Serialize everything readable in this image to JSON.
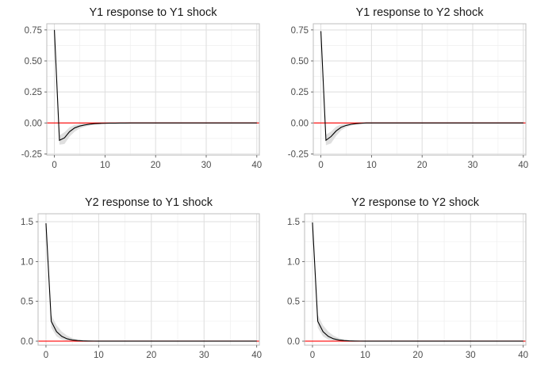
{
  "chart_data": [
    {
      "type": "line",
      "title": "Y1 response to Y1 shock",
      "xlim": [
        -1.5,
        40.5
      ],
      "ylim": [
        -0.26,
        0.8
      ],
      "xticks": [
        0,
        10,
        20,
        30,
        40
      ],
      "xtick_labels": [
        "0",
        "10",
        "20",
        "30",
        "40"
      ],
      "yticks": [
        -0.25,
        0,
        0.25,
        0.5,
        0.75
      ],
      "ytick_labels": [
        "-0.25",
        "0.00",
        "0.25",
        "0.50",
        "0.75"
      ],
      "reference_line": {
        "y": 0,
        "color": "#ff0000"
      },
      "grid": true,
      "x": [
        0,
        1,
        2,
        3,
        4,
        5,
        6,
        7,
        8,
        9,
        10,
        11,
        12,
        13,
        14,
        15,
        16,
        17,
        18,
        19,
        20,
        21,
        22,
        23,
        24,
        25,
        26,
        27,
        28,
        29,
        30,
        31,
        32,
        33,
        34,
        35,
        36,
        37,
        38,
        39,
        40
      ],
      "series": [
        {
          "role": "estimate",
          "color": "#000000",
          "values": [
            0.75,
            -0.14,
            -0.12,
            -0.07,
            -0.04,
            -0.025,
            -0.016,
            -0.01,
            -0.006,
            -0.004,
            -0.003,
            -0.002,
            -0.0015,
            -0.001,
            -0.0008,
            0,
            0,
            0,
            0,
            0,
            0,
            0,
            0,
            0,
            0,
            0,
            0,
            0,
            0,
            0,
            0,
            0,
            0,
            0,
            0,
            0,
            0,
            0,
            0,
            0,
            0
          ]
        },
        {
          "role": "lower",
          "color": "#d9d9d9",
          "values": [
            0.75,
            -0.175,
            -0.17,
            -0.11,
            -0.07,
            -0.045,
            -0.03,
            -0.02,
            -0.013,
            -0.009,
            -0.006,
            -0.004,
            -0.003,
            -0.002,
            -0.001,
            0,
            0,
            0,
            0,
            0,
            0,
            0,
            0,
            0,
            0,
            0,
            0,
            0,
            0,
            0,
            0,
            0,
            0,
            0,
            0,
            0,
            0,
            0,
            0,
            0,
            0
          ]
        },
        {
          "role": "upper",
          "color": "#d9d9d9",
          "values": [
            0.75,
            -0.1,
            -0.075,
            -0.035,
            -0.015,
            -0.008,
            -0.004,
            -0.002,
            -0.001,
            -0.0005,
            0,
            0,
            0,
            0,
            0,
            0,
            0,
            0,
            0,
            0,
            0,
            0,
            0,
            0,
            0,
            0,
            0,
            0,
            0,
            0,
            0,
            0,
            0,
            0,
            0,
            0,
            0,
            0,
            0,
            0,
            0
          ]
        }
      ]
    },
    {
      "type": "line",
      "title": "Y1 response to Y2 shock",
      "xlim": [
        -1.5,
        40.5
      ],
      "ylim": [
        -0.26,
        0.8
      ],
      "xticks": [
        0,
        10,
        20,
        30,
        40
      ],
      "xtick_labels": [
        "0",
        "10",
        "20",
        "30",
        "40"
      ],
      "yticks": [
        -0.25,
        0,
        0.25,
        0.5,
        0.75
      ],
      "ytick_labels": [
        "-0.25",
        "0.00",
        "0.25",
        "0.50",
        "0.75"
      ],
      "reference_line": {
        "y": 0,
        "color": "#ff0000"
      },
      "grid": true,
      "x": [
        0,
        1,
        2,
        3,
        4,
        5,
        6,
        7,
        8,
        9,
        10,
        11,
        12,
        13,
        14,
        15,
        16,
        17,
        18,
        19,
        20,
        21,
        22,
        23,
        24,
        25,
        26,
        27,
        28,
        29,
        30,
        31,
        32,
        33,
        34,
        35,
        36,
        37,
        38,
        39,
        40
      ],
      "series": [
        {
          "role": "estimate",
          "color": "#000000",
          "values": [
            0.74,
            -0.14,
            -0.11,
            -0.065,
            -0.035,
            -0.02,
            -0.011,
            -0.006,
            -0.003,
            0,
            0,
            0,
            0,
            0,
            0,
            0,
            0,
            0,
            0,
            0,
            0,
            0,
            0,
            0,
            0,
            0,
            0,
            0,
            0,
            0,
            0,
            0,
            0,
            0,
            0,
            0,
            0,
            0,
            0,
            0,
            0
          ]
        },
        {
          "role": "lower",
          "color": "#d9d9d9",
          "values": [
            0.74,
            -0.18,
            -0.165,
            -0.105,
            -0.06,
            -0.035,
            -0.02,
            -0.011,
            -0.006,
            -0.002,
            0,
            0,
            0,
            0,
            0,
            0,
            0,
            0,
            0,
            0,
            0,
            0,
            0,
            0,
            0,
            0,
            0,
            0,
            0,
            0,
            0,
            0,
            0,
            0,
            0,
            0,
            0,
            0,
            0,
            0,
            0
          ]
        },
        {
          "role": "upper",
          "color": "#d9d9d9",
          "values": [
            0.74,
            -0.095,
            -0.07,
            -0.03,
            -0.012,
            -0.005,
            -0.002,
            -0.001,
            0,
            0,
            0,
            0,
            0,
            0,
            0,
            0,
            0,
            0,
            0,
            0,
            0,
            0,
            0,
            0,
            0,
            0,
            0,
            0,
            0,
            0,
            0,
            0,
            0,
            0,
            0,
            0,
            0,
            0,
            0,
            0,
            0
          ]
        }
      ]
    },
    {
      "type": "line",
      "title": "Y2 response to Y1 shock",
      "xlim": [
        -1.5,
        40.5
      ],
      "ylim": [
        -0.05,
        1.6
      ],
      "xticks": [
        0,
        10,
        20,
        30,
        40
      ],
      "xtick_labels": [
        "0",
        "10",
        "20",
        "30",
        "40"
      ],
      "yticks": [
        0,
        0.5,
        1,
        1.5
      ],
      "ytick_labels": [
        "0.0",
        "0.5",
        "1.0",
        "1.5"
      ],
      "reference_line": {
        "y": 0,
        "color": "#ff0000"
      },
      "grid": true,
      "x": [
        0,
        1,
        2,
        3,
        4,
        5,
        6,
        7,
        8,
        9,
        10,
        11,
        12,
        13,
        14,
        15,
        16,
        17,
        18,
        19,
        20,
        21,
        22,
        23,
        24,
        25,
        26,
        27,
        28,
        29,
        30,
        31,
        32,
        33,
        34,
        35,
        36,
        37,
        38,
        39,
        40
      ],
      "series": [
        {
          "role": "estimate",
          "color": "#000000",
          "values": [
            1.48,
            0.25,
            0.12,
            0.06,
            0.03,
            0.015,
            0.008,
            0.004,
            0.002,
            0.001,
            0,
            0,
            0,
            0,
            0,
            0,
            0,
            0,
            0,
            0,
            0,
            0,
            0,
            0,
            0,
            0,
            0,
            0,
            0,
            0,
            0,
            0,
            0,
            0,
            0,
            0,
            0,
            0,
            0,
            0,
            0
          ]
        },
        {
          "role": "lower",
          "color": "#d9d9d9",
          "values": [
            1.48,
            0.17,
            0.06,
            0.02,
            0.007,
            0.002,
            0,
            0,
            0,
            0,
            0,
            0,
            0,
            0,
            0,
            0,
            0,
            0,
            0,
            0,
            0,
            0,
            0,
            0,
            0,
            0,
            0,
            0,
            0,
            0,
            0,
            0,
            0,
            0,
            0,
            0,
            0,
            0,
            0,
            0,
            0
          ]
        },
        {
          "role": "upper",
          "color": "#d9d9d9",
          "values": [
            1.48,
            0.33,
            0.2,
            0.12,
            0.07,
            0.04,
            0.022,
            0.012,
            0.006,
            0.003,
            0.001,
            0,
            0,
            0,
            0,
            0,
            0,
            0,
            0,
            0,
            0,
            0,
            0,
            0,
            0,
            0,
            0,
            0,
            0,
            0,
            0,
            0,
            0,
            0,
            0,
            0,
            0,
            0,
            0,
            0,
            0
          ]
        }
      ]
    },
    {
      "type": "line",
      "title": "Y2 response to Y2 shock",
      "xlim": [
        -1.5,
        40.5
      ],
      "ylim": [
        -0.05,
        1.6
      ],
      "xticks": [
        0,
        10,
        20,
        30,
        40
      ],
      "xtick_labels": [
        "0",
        "10",
        "20",
        "30",
        "40"
      ],
      "yticks": [
        0,
        0.5,
        1,
        1.5
      ],
      "ytick_labels": [
        "0.0",
        "0.5",
        "1.0",
        "1.5"
      ],
      "reference_line": {
        "y": 0,
        "color": "#ff0000"
      },
      "grid": true,
      "x": [
        0,
        1,
        2,
        3,
        4,
        5,
        6,
        7,
        8,
        9,
        10,
        11,
        12,
        13,
        14,
        15,
        16,
        17,
        18,
        19,
        20,
        21,
        22,
        23,
        24,
        25,
        26,
        27,
        28,
        29,
        30,
        31,
        32,
        33,
        34,
        35,
        36,
        37,
        38,
        39,
        40
      ],
      "series": [
        {
          "role": "estimate",
          "color": "#000000",
          "values": [
            1.49,
            0.25,
            0.12,
            0.06,
            0.03,
            0.015,
            0.008,
            0.004,
            0.002,
            0.001,
            0,
            0,
            0,
            0,
            0,
            0,
            0,
            0,
            0,
            0,
            0,
            0,
            0,
            0,
            0,
            0,
            0,
            0,
            0,
            0,
            0,
            0,
            0,
            0,
            0,
            0,
            0,
            0,
            0,
            0,
            0
          ]
        },
        {
          "role": "lower",
          "color": "#d9d9d9",
          "values": [
            1.49,
            0.17,
            0.06,
            0.02,
            0.007,
            0.002,
            0,
            0,
            0,
            0,
            0,
            0,
            0,
            0,
            0,
            0,
            0,
            0,
            0,
            0,
            0,
            0,
            0,
            0,
            0,
            0,
            0,
            0,
            0,
            0,
            0,
            0,
            0,
            0,
            0,
            0,
            0,
            0,
            0,
            0,
            0
          ]
        },
        {
          "role": "upper",
          "color": "#d9d9d9",
          "values": [
            1.49,
            0.33,
            0.2,
            0.12,
            0.07,
            0.04,
            0.022,
            0.012,
            0.006,
            0.003,
            0.001,
            0,
            0,
            0,
            0,
            0,
            0,
            0,
            0,
            0,
            0,
            0,
            0,
            0,
            0,
            0,
            0,
            0,
            0,
            0,
            0,
            0,
            0,
            0,
            0,
            0,
            0,
            0,
            0,
            0,
            0
          ]
        }
      ]
    }
  ]
}
